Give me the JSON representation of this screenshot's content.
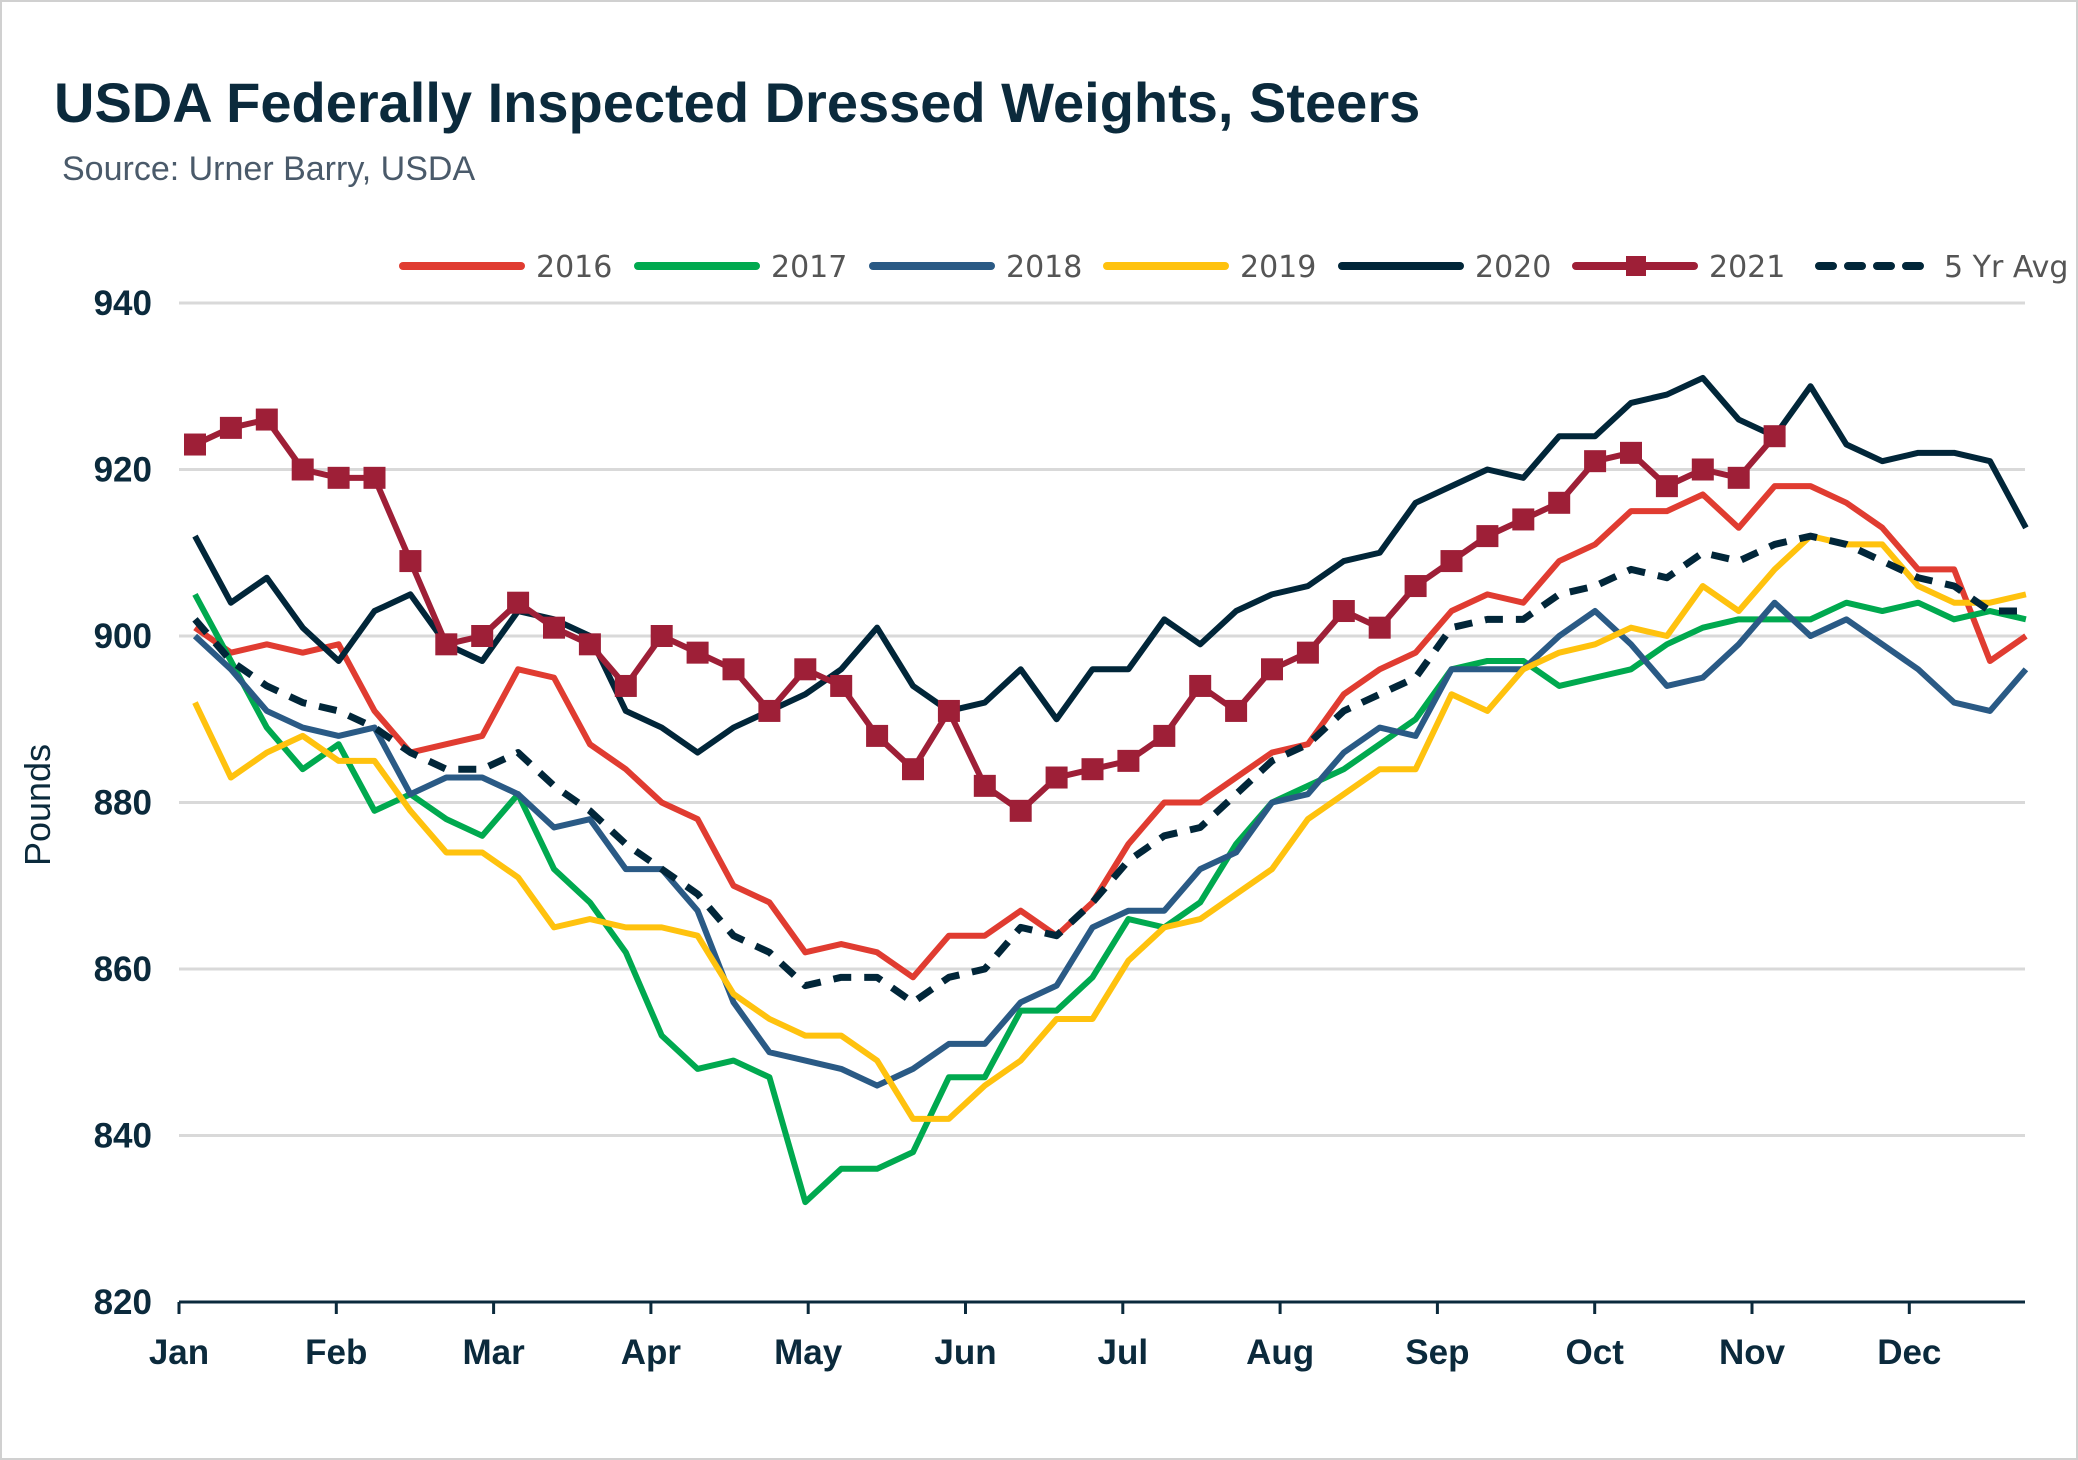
{
  "chart_data": {
    "type": "line",
    "title": "USDA Federally Inspected Dressed Weights, Steers",
    "subtitle": "Source: Urner Barry, USDA",
    "xlabel": "",
    "ylabel": "Pounds",
    "ylim": [
      820,
      940
    ],
    "yticks": [
      820,
      840,
      860,
      880,
      900,
      920,
      940
    ],
    "xticks": [
      "Jan",
      "Feb",
      "Mar",
      "Apr",
      "May",
      "Jun",
      "Jul",
      "Aug",
      "Sep",
      "Oct",
      "Nov",
      "Dec"
    ],
    "x_unit": "week of year",
    "grid": "horizontal",
    "legend_position": "top",
    "series": [
      {
        "name": "2016",
        "color": "#E03C31",
        "style": "solid",
        "values": [
          901,
          898,
          899,
          898,
          899,
          891,
          886,
          887,
          888,
          896,
          895,
          887,
          884,
          880,
          878,
          870,
          868,
          862,
          863,
          862,
          859,
          864,
          864,
          867,
          864,
          868,
          875,
          880,
          880,
          883,
          886,
          887,
          893,
          896,
          898,
          903,
          905,
          904,
          909,
          911,
          915,
          915,
          917,
          913,
          918,
          918,
          916,
          913,
          908,
          908,
          897,
          900
        ]
      },
      {
        "name": "2017",
        "color": "#00A94F",
        "style": "solid",
        "values": [
          905,
          897,
          889,
          884,
          887,
          879,
          881,
          878,
          876,
          881,
          872,
          868,
          862,
          852,
          848,
          849,
          847,
          832,
          836,
          836,
          838,
          847,
          847,
          855,
          855,
          859,
          866,
          865,
          868,
          875,
          880,
          882,
          884,
          887,
          890,
          896,
          897,
          897,
          894,
          895,
          896,
          899,
          901,
          902,
          902,
          902,
          904,
          903,
          904,
          902,
          903,
          902
        ]
      },
      {
        "name": "2018",
        "color": "#2A5A85",
        "style": "solid",
        "values": [
          900,
          896,
          891,
          889,
          888,
          889,
          881,
          883,
          883,
          881,
          877,
          878,
          872,
          872,
          867,
          856,
          850,
          849,
          848,
          846,
          848,
          851,
          851,
          856,
          858,
          865,
          867,
          867,
          872,
          874,
          880,
          881,
          886,
          889,
          888,
          896,
          896,
          896,
          900,
          903,
          899,
          894,
          895,
          899,
          904,
          900,
          902,
          899,
          896,
          892,
          891,
          896
        ]
      },
      {
        "name": "2019",
        "color": "#FFC20E",
        "style": "solid",
        "values": [
          892,
          883,
          886,
          888,
          885,
          885,
          879,
          874,
          874,
          871,
          865,
          866,
          865,
          865,
          864,
          857,
          854,
          852,
          852,
          849,
          842,
          842,
          846,
          849,
          854,
          854,
          861,
          865,
          866,
          869,
          872,
          878,
          881,
          884,
          884,
          893,
          891,
          896,
          898,
          899,
          901,
          900,
          906,
          903,
          908,
          912,
          911,
          911,
          906,
          904,
          904,
          905
        ]
      },
      {
        "name": "2020",
        "color": "#012639",
        "style": "solid",
        "values": [
          912,
          904,
          907,
          901,
          897,
          903,
          905,
          899,
          897,
          903,
          902,
          900,
          891,
          889,
          886,
          889,
          891,
          893,
          896,
          901,
          894,
          891,
          892,
          896,
          890,
          896,
          896,
          902,
          899,
          903,
          905,
          906,
          909,
          910,
          916,
          918,
          920,
          919,
          924,
          924,
          928,
          929,
          931,
          926,
          924,
          930,
          923,
          921,
          922,
          922,
          921,
          913
        ]
      },
      {
        "name": "2021",
        "color": "#9E1F37",
        "style": "solid-square-markers",
        "values": [
          923,
          925,
          926,
          920,
          919,
          919,
          909,
          899,
          900,
          904,
          901,
          899,
          894,
          900,
          898,
          896,
          891,
          896,
          894,
          888,
          884,
          891,
          882,
          879,
          883,
          884,
          885,
          888,
          894,
          891,
          896,
          898,
          903,
          901,
          906,
          909,
          912,
          914,
          916,
          921,
          922,
          918,
          920,
          919,
          924
        ]
      },
      {
        "name": "5 Yr Avg",
        "color": "#012639",
        "style": "dashed",
        "values": [
          902,
          897,
          894,
          892,
          891,
          889,
          886,
          884,
          884,
          886,
          882,
          879,
          875,
          872,
          869,
          864,
          862,
          858,
          859,
          859,
          856,
          859,
          860,
          865,
          864,
          868,
          873,
          876,
          877,
          881,
          885,
          887,
          891,
          893,
          895,
          901,
          902,
          902,
          905,
          906,
          908,
          907,
          910,
          909,
          911,
          912,
          911,
          909,
          907,
          906,
          903,
          903
        ]
      }
    ]
  }
}
